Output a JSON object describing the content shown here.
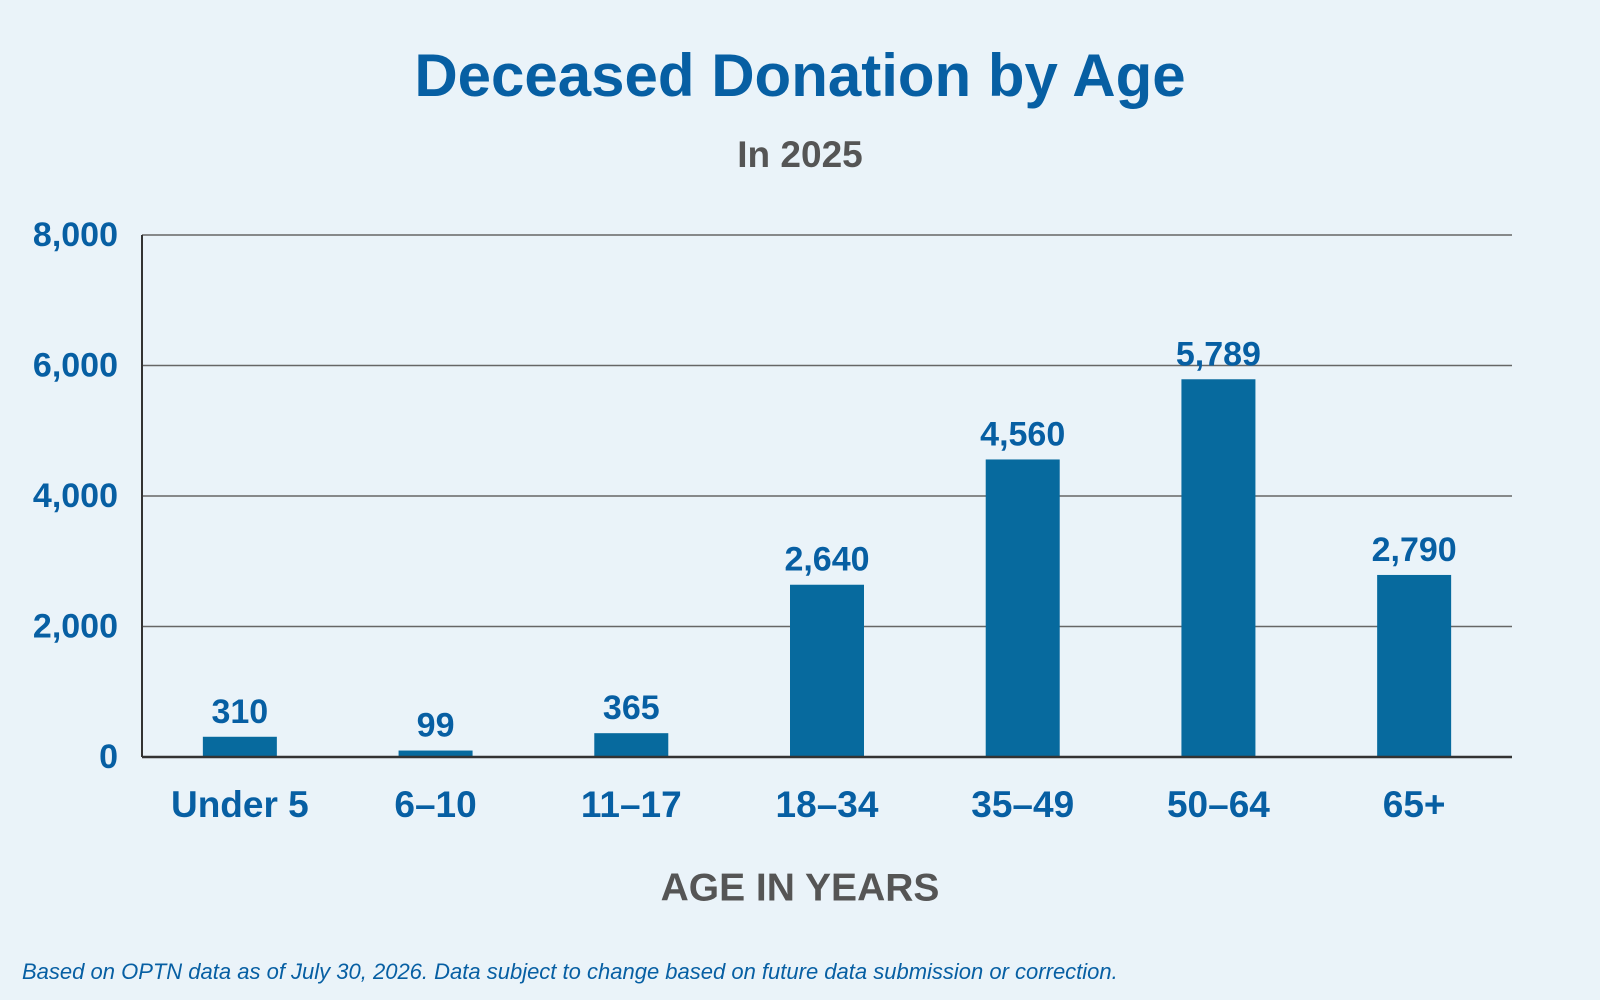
{
  "chart_data": {
    "type": "bar",
    "title": "Deceased Donation by Age",
    "subtitle": "In 2025",
    "categories": [
      "Under 5",
      "6–10",
      "11–17",
      "18–34",
      "35–49",
      "50–64",
      "65+"
    ],
    "values": [
      310,
      99,
      365,
      2640,
      4560,
      5789,
      2790
    ],
    "value_labels": [
      "310",
      "99",
      "365",
      "2,640",
      "4,560",
      "5,789",
      "2,790"
    ],
    "xlabel": "AGE IN YEARS",
    "ylabel": "",
    "ylim": [
      0,
      8000
    ],
    "yticks": [
      0,
      2000,
      4000,
      6000,
      8000
    ],
    "ytick_labels": [
      "0",
      "2,000",
      "4,000",
      "6,000",
      "8,000"
    ],
    "grid": true,
    "legend": "none"
  },
  "footnote": "Based on OPTN data as of July 30, 2026. Data subject to change based on future data submission or correction.",
  "colors": {
    "bar": "#076a9e",
    "text_accent": "#075fa3",
    "text_muted": "#555555",
    "background": "#eaf3f9"
  }
}
